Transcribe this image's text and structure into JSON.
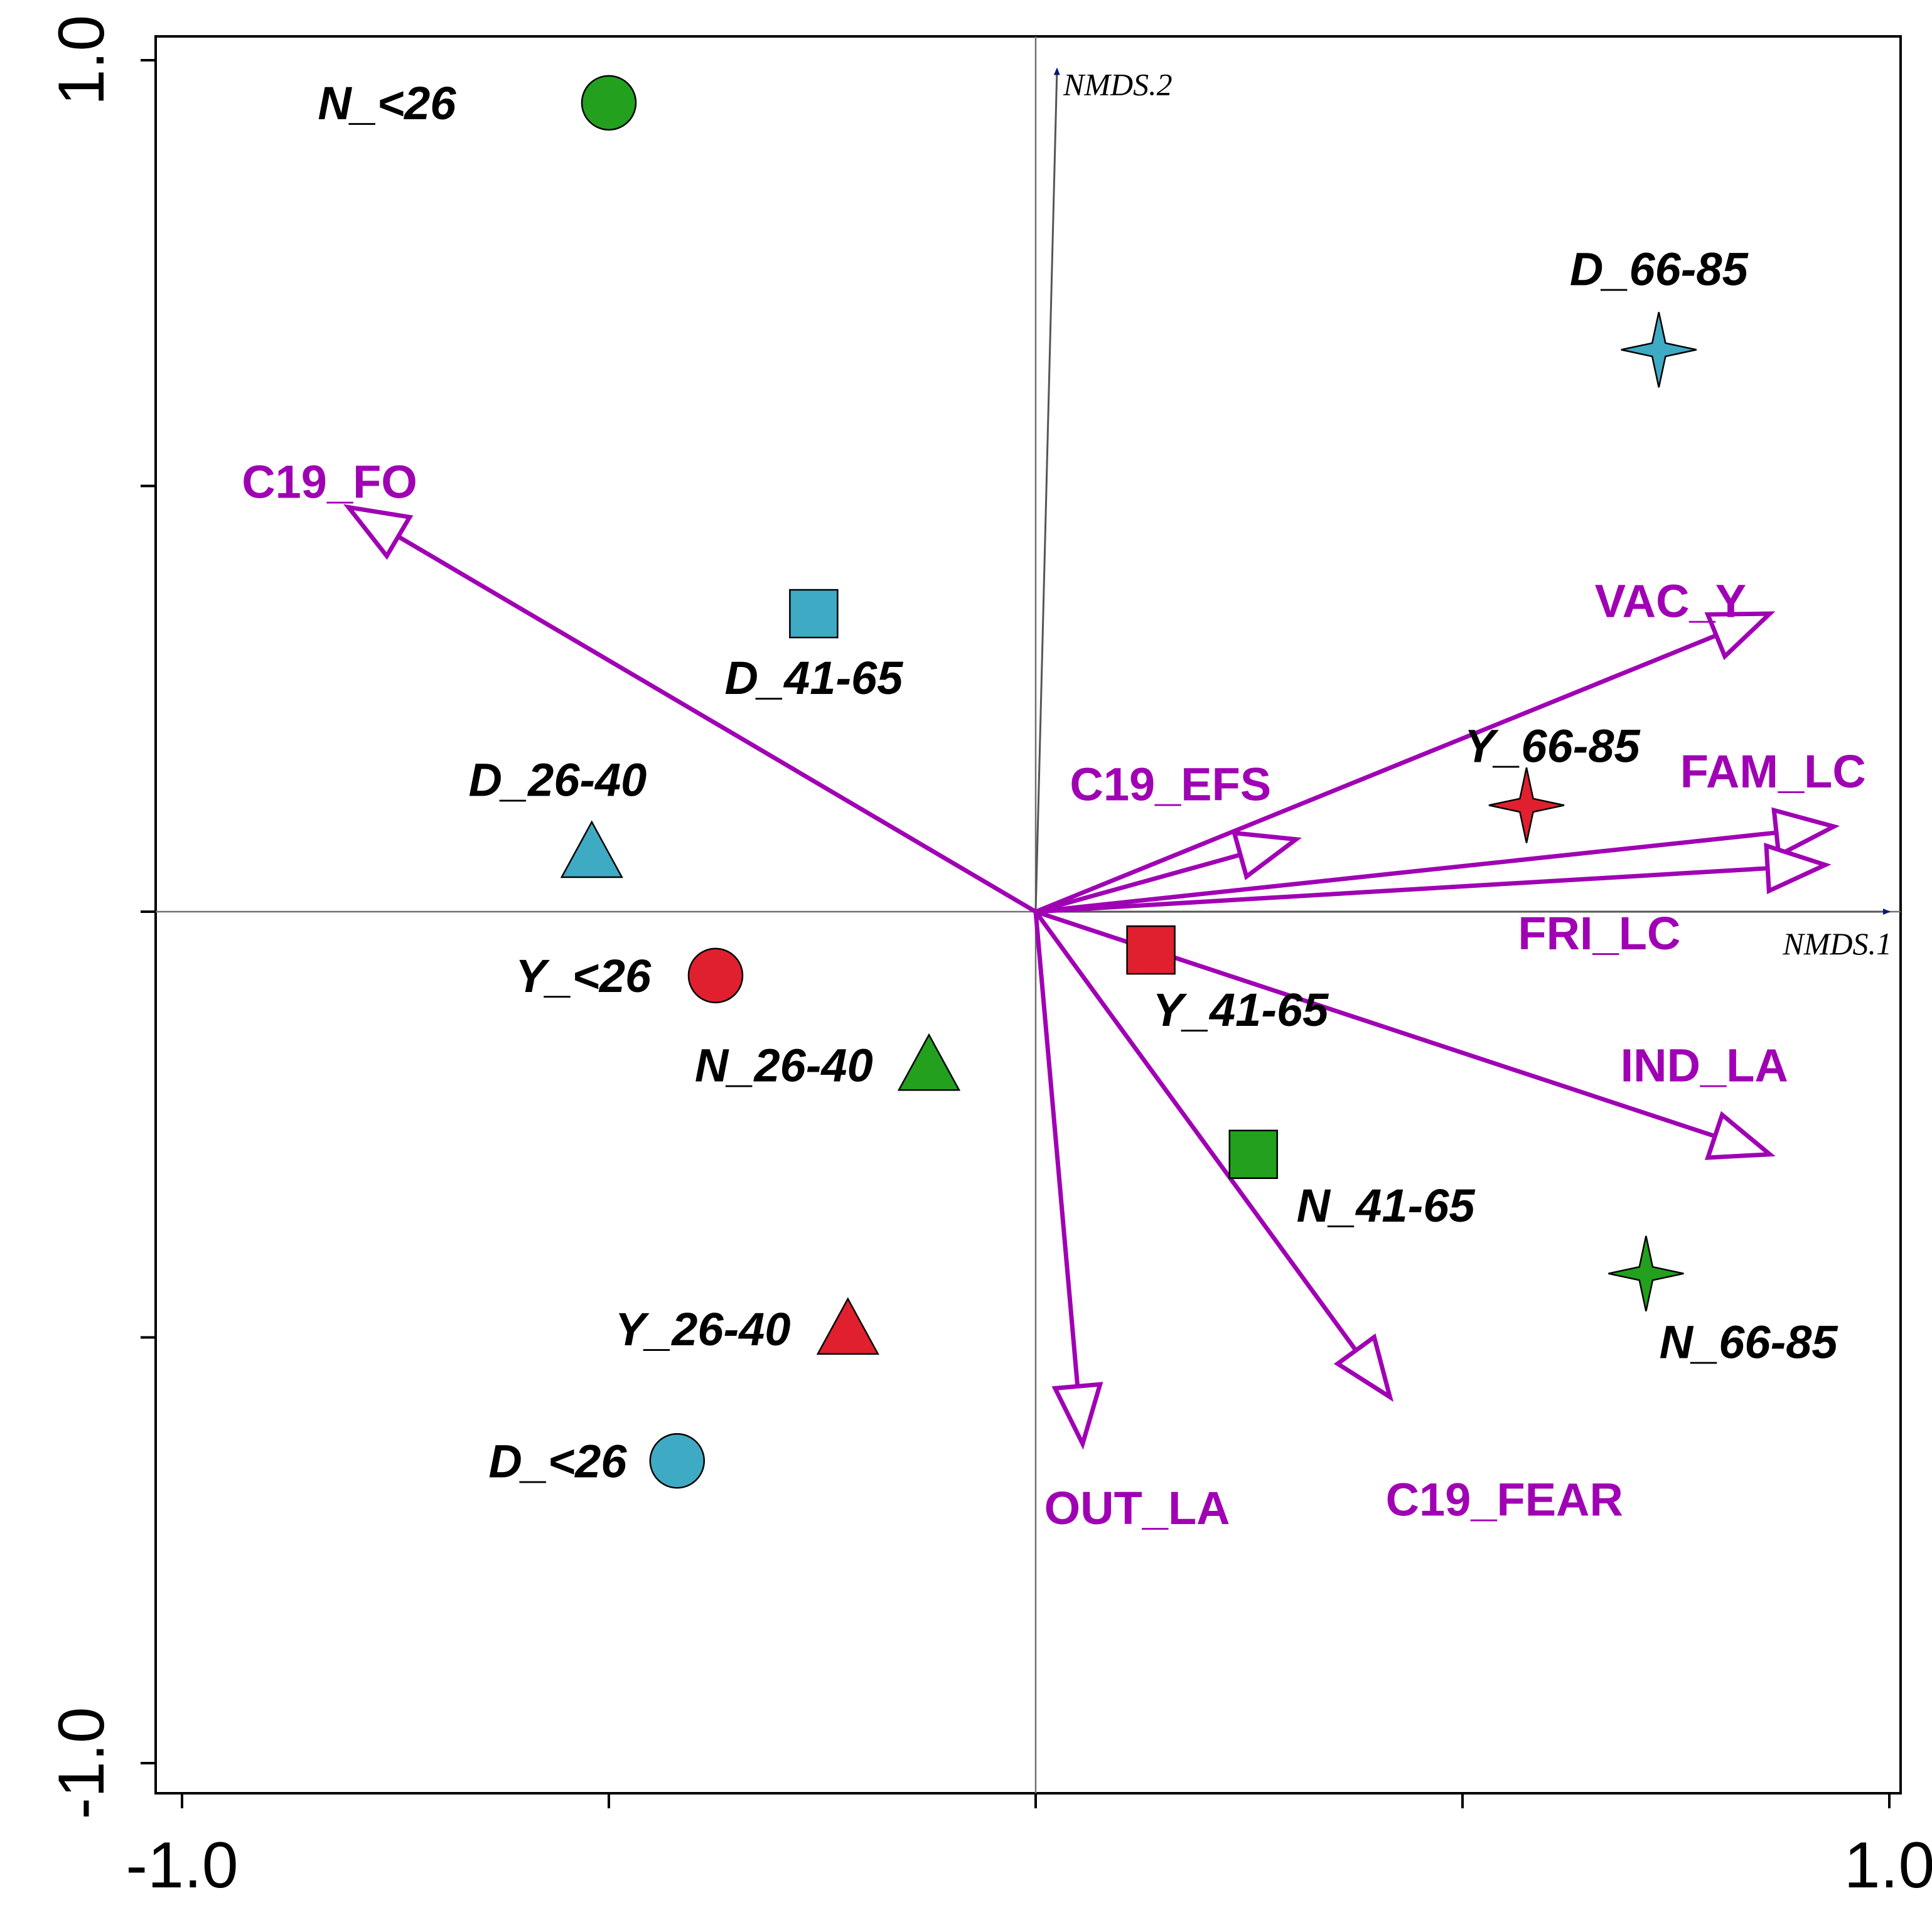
{
  "chart_data": {
    "type": "scatter",
    "title": "",
    "xlabel": "",
    "ylabel": "",
    "xlim": [
      -1.0,
      1.0
    ],
    "ylim": [
      -1.0,
      1.0
    ],
    "grid": false,
    "x_tick_values": [
      -1.0,
      -0.5,
      0.0,
      0.5,
      1.0
    ],
    "y_tick_values": [
      -1.0,
      -0.5,
      0.0,
      0.5,
      1.0
    ],
    "x_tick_labels": [
      {
        "value": -1.0,
        "text": "-1.0"
      },
      {
        "value": 1.0,
        "text": "1.0"
      }
    ],
    "y_tick_labels": [
      {
        "value": 1.0,
        "text": "1.0"
      },
      {
        "value": -1.0,
        "text": "-1.0"
      }
    ],
    "axes": [
      {
        "name": "NMDS.1",
        "x": 1.0,
        "y": 0.0
      },
      {
        "name": "NMDS.2",
        "x": 0.025,
        "y": 0.99
      }
    ],
    "points": [
      {
        "label": "N_<26",
        "x": -0.5,
        "y": 0.95,
        "shape": "circle",
        "color": "#22a01e",
        "label_dx": -0.26,
        "label_dy": 0.0
      },
      {
        "label": "D_66-85",
        "x": 0.73,
        "y": 0.66,
        "shape": "star",
        "color": "#3faac4",
        "label_dx": 0.0,
        "label_dy": 0.095
      },
      {
        "label": "D_41-65",
        "x": -0.26,
        "y": 0.35,
        "shape": "square",
        "color": "#3faac4",
        "label_dx": 0.0,
        "label_dy": -0.075
      },
      {
        "label": "D_26-40",
        "x": -0.52,
        "y": 0.07,
        "shape": "triangle",
        "color": "#3faac4",
        "label_dx": -0.04,
        "label_dy": 0.085
      },
      {
        "label": "Y_66-85",
        "x": 0.575,
        "y": 0.125,
        "shape": "star",
        "color": "#e0202e",
        "label_dx": 0.03,
        "label_dy": 0.07
      },
      {
        "label": "Y_<26",
        "x": -0.375,
        "y": -0.075,
        "shape": "circle",
        "color": "#e0202e",
        "label_dx": -0.155,
        "label_dy": 0.0
      },
      {
        "label": "Y_41-65",
        "x": 0.135,
        "y": -0.045,
        "shape": "square",
        "color": "#e0202e",
        "label_dx": 0.105,
        "label_dy": -0.07
      },
      {
        "label": "N_26-40",
        "x": -0.125,
        "y": -0.18,
        "shape": "triangle",
        "color": "#22a01e",
        "label_dx": -0.17,
        "label_dy": 0.0
      },
      {
        "label": "N_41-65",
        "x": 0.255,
        "y": -0.285,
        "shape": "square",
        "color": "#22a01e",
        "label_dx": 0.155,
        "label_dy": -0.06
      },
      {
        "label": "N_66-85",
        "x": 0.715,
        "y": -0.425,
        "shape": "star",
        "color": "#22a01e",
        "label_dx": 0.12,
        "label_dy": -0.08
      },
      {
        "label": "Y_26-40",
        "x": -0.22,
        "y": -0.49,
        "shape": "triangle",
        "color": "#e0202e",
        "label_dx": -0.17,
        "label_dy": 0.0
      },
      {
        "label": "D_<26",
        "x": -0.42,
        "y": -0.645,
        "shape": "circle",
        "color": "#3faac4",
        "label_dx": -0.14,
        "label_dy": 0.0
      }
    ],
    "vectors": [
      {
        "label": "C19_FO",
        "x": -0.805,
        "y": 0.475,
        "label_x": -0.93,
        "label_y": 0.505
      },
      {
        "label": "VAC_Y",
        "x": 0.86,
        "y": 0.35,
        "label_x": 0.655,
        "label_y": 0.365
      },
      {
        "label": "C19_EFS",
        "x": 0.305,
        "y": 0.085,
        "label_x": 0.04,
        "label_y": 0.15
      },
      {
        "label": "FAM_LC",
        "x": 0.935,
        "y": 0.1,
        "label_x": 0.755,
        "label_y": 0.165
      },
      {
        "label": "FRI_LC",
        "x": 0.925,
        "y": 0.055,
        "label_x": 0.565,
        "label_y": -0.025
      },
      {
        "label": "IND_LA",
        "x": 0.86,
        "y": -0.285,
        "label_x": 0.685,
        "label_y": -0.18
      },
      {
        "label": "OUT_LA",
        "x": 0.055,
        "y": -0.625,
        "label_x": 0.01,
        "label_y": -0.7
      },
      {
        "label": "C19_FEAR",
        "x": 0.415,
        "y": -0.57,
        "label_x": 0.41,
        "label_y": -0.69
      }
    ],
    "colors": {
      "vector": "#a000b4",
      "axis_arrow": "#0a1a6e",
      "frame": "#000000",
      "crosshair": "#707070"
    }
  }
}
